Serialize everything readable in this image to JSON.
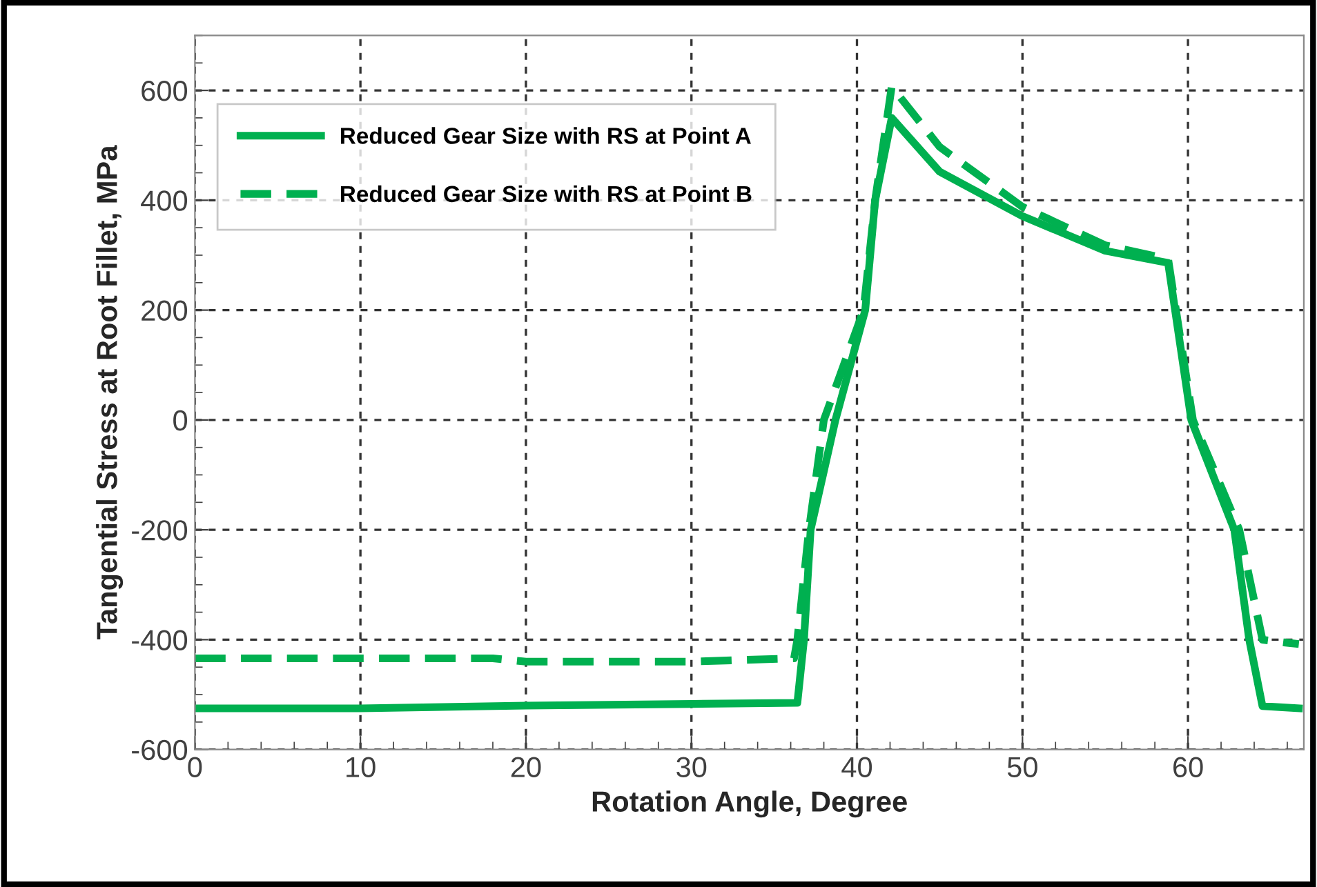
{
  "chart_data": {
    "type": "line",
    "xlabel": "Rotation Angle, Degree",
    "ylabel": "Tangential Stress at Root Fillet, MPa",
    "xlim": [
      0,
      67
    ],
    "xticks": [
      0,
      10,
      20,
      30,
      40,
      50,
      60
    ],
    "ylim": [
      -600,
      700
    ],
    "yticks": [
      -600,
      -400,
      -200,
      0,
      200,
      400,
      600
    ],
    "grid": true,
    "legend": "top left",
    "series": [
      {
        "name": "Reduced Gear Size with RS at Point A",
        "color": "#00b050",
        "line_style": "solid",
        "x": [
          0,
          10,
          20,
          30,
          36.4,
          36.8,
          37.2,
          38.7,
          40.5,
          41.1,
          42.1,
          45,
          50,
          55,
          58.8,
          60.2,
          62.8,
          63.7,
          64.5,
          66.7
        ],
        "values": [
          -525,
          -525,
          -520,
          -517,
          -515,
          -400,
          -200,
          0,
          200,
          400,
          550,
          452,
          371,
          308,
          286,
          0,
          -200,
          -400,
          -521,
          -525
        ]
      },
      {
        "name": "Reduced Gear Size with RS at Point B",
        "color": "#00b050",
        "line_style": "dashed",
        "x": [
          0,
          10,
          18,
          20,
          30,
          36.2,
          36.4,
          37.1,
          38.0,
          40.4,
          41.1,
          42.1,
          45,
          50,
          55,
          58.8,
          60.3,
          63.1,
          64.5,
          65.8,
          66.7
        ],
        "values": [
          -434,
          -434,
          -434,
          -440,
          -440,
          -434,
          -400,
          -200,
          0,
          200,
          400,
          607,
          497,
          388,
          318,
          293,
          0,
          -200,
          -400,
          -405,
          -408
        ]
      }
    ]
  }
}
